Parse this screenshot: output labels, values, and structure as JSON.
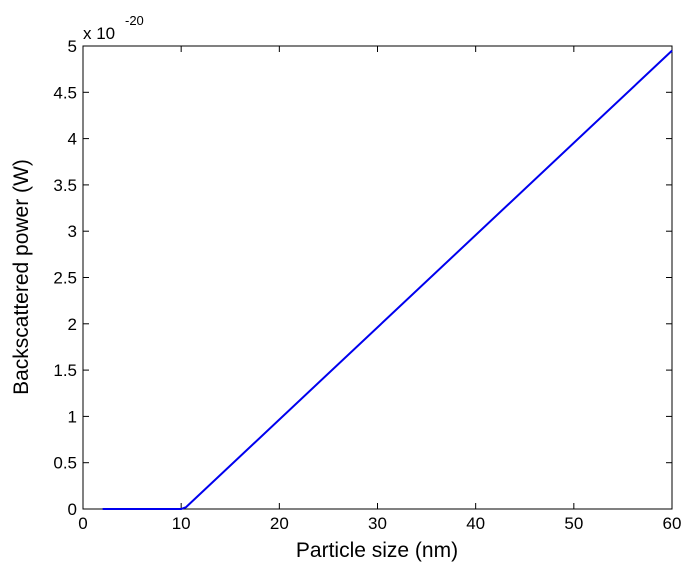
{
  "chart_data": {
    "type": "line",
    "title": "",
    "xlabel": "Particle size (nm)",
    "ylabel": "Backscattered power (W)",
    "xlim": [
      0,
      60
    ],
    "ylim": [
      0,
      5
    ],
    "y_exponent_label": {
      "base": "x 10",
      "exponent": "-20"
    },
    "x_ticks": [
      0,
      10,
      20,
      30,
      40,
      50,
      60
    ],
    "x_tick_labels": [
      "0",
      "10",
      "20",
      "30",
      "40",
      "50",
      "60"
    ],
    "y_ticks": [
      0,
      0.5,
      1,
      1.5,
      2,
      2.5,
      3,
      3.5,
      4,
      4.5,
      5
    ],
    "y_tick_labels": [
      "0",
      "0.5",
      "1",
      "1.5",
      "2",
      "2.5",
      "3",
      "3.5",
      "4",
      "4.5",
      "5"
    ],
    "grid": false,
    "legend": null,
    "series": [
      {
        "color": "#0000ee",
        "x": [
          2,
          10,
          10.5,
          60
        ],
        "y": [
          0,
          0,
          0.02,
          4.95
        ]
      }
    ]
  }
}
